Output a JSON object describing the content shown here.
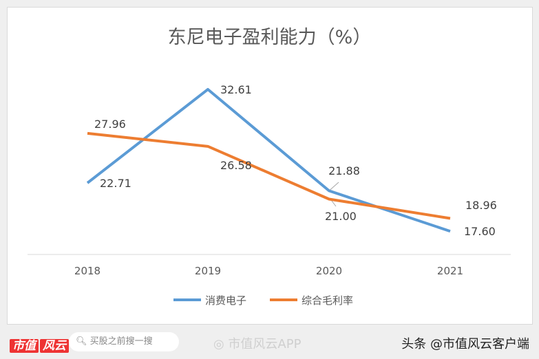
{
  "chart_data": {
    "type": "line",
    "title": "东尼电子盈利能力（%）",
    "categories": [
      "2018",
      "2019",
      "2020",
      "2021"
    ],
    "series": [
      {
        "name": "消费电子",
        "values": [
          22.71,
          32.61,
          21.88,
          17.6
        ],
        "labels": [
          "22.71",
          "32.61",
          "21.88",
          "17.60"
        ],
        "color": "#5b9bd5"
      },
      {
        "name": "综合毛利率",
        "values": [
          27.96,
          26.58,
          21.0,
          18.96
        ],
        "labels": [
          "27.96",
          "26.58",
          "21.00",
          "18.96"
        ],
        "color": "#ed7d31"
      }
    ],
    "grid": false,
    "legend": "bottom"
  },
  "footer": {
    "logo": "市值",
    "logo_mark": "风云",
    "search_placeholder": "买股之前搜一搜",
    "watermark": "市值风云APP",
    "source": "头条 @市值风云客户端"
  }
}
